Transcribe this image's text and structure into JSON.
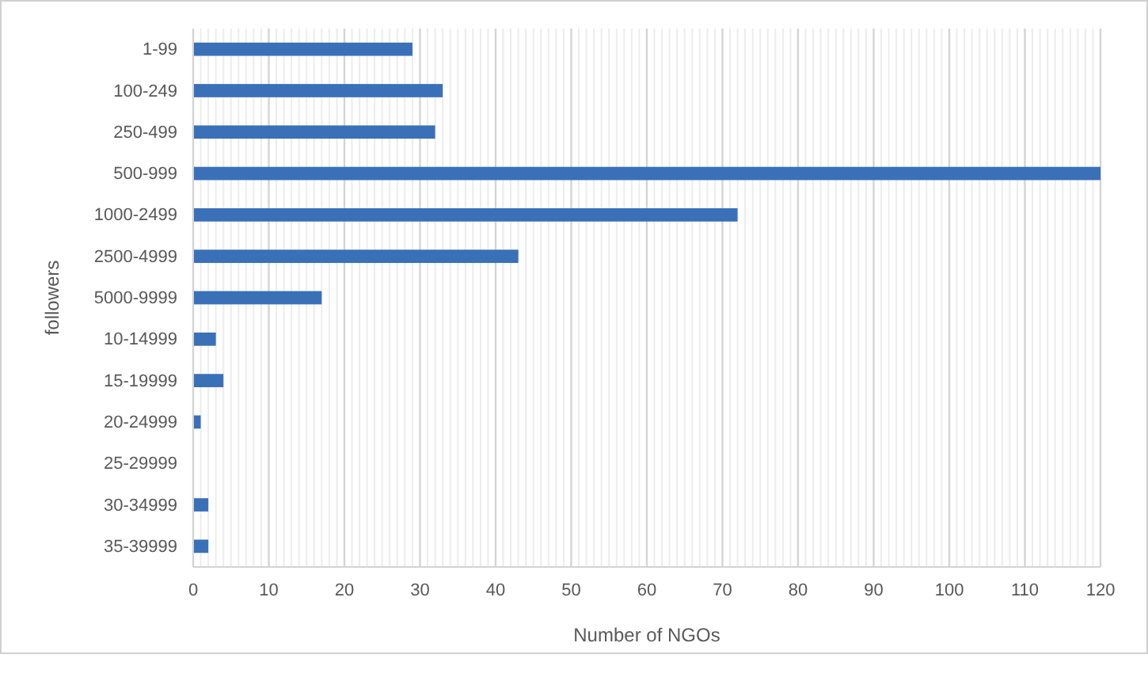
{
  "chart_data": {
    "type": "bar",
    "orientation": "horizontal",
    "xlabel": "Number of NGOs",
    "ylabel": "followers",
    "categories": [
      "1-99",
      "100-249",
      "250-499",
      "500-999",
      "1000-2499",
      "2500-4999",
      "5000-9999",
      "10-14999",
      "15-19999",
      "20-24999",
      "25-29999",
      "30-34999",
      "35-39999"
    ],
    "values": [
      29,
      33,
      32,
      120,
      72,
      43,
      17,
      3,
      4,
      1,
      0,
      2,
      2
    ],
    "color": "#3a70b8",
    "xlim": [
      0,
      120
    ],
    "xticks": [
      0,
      10,
      20,
      30,
      40,
      50,
      60,
      70,
      80,
      90,
      100,
      110,
      120
    ],
    "grid": "x"
  }
}
